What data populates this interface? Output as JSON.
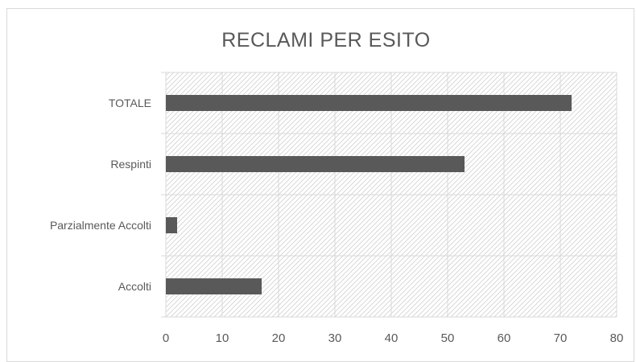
{
  "chart_data": {
    "type": "bar",
    "orientation": "horizontal",
    "title": "RECLAMI PER ESITO",
    "categories": [
      "TOTALE",
      "Respinti",
      "Parzialmente Accolti",
      "Accolti"
    ],
    "values": [
      72,
      53,
      2,
      17
    ],
    "xlabel": "",
    "ylabel": "",
    "xlim": [
      0,
      80
    ],
    "x_ticks": [
      "0",
      "10",
      "20",
      "30",
      "40",
      "50",
      "60",
      "70",
      "80"
    ],
    "grid": true,
    "plot_background": "diagonal-hatch",
    "legend": "none",
    "colors": {
      "bar": "#595959",
      "grid": "#d9d9d9",
      "hatch": "#d0d0d0",
      "text": "#595959"
    }
  }
}
